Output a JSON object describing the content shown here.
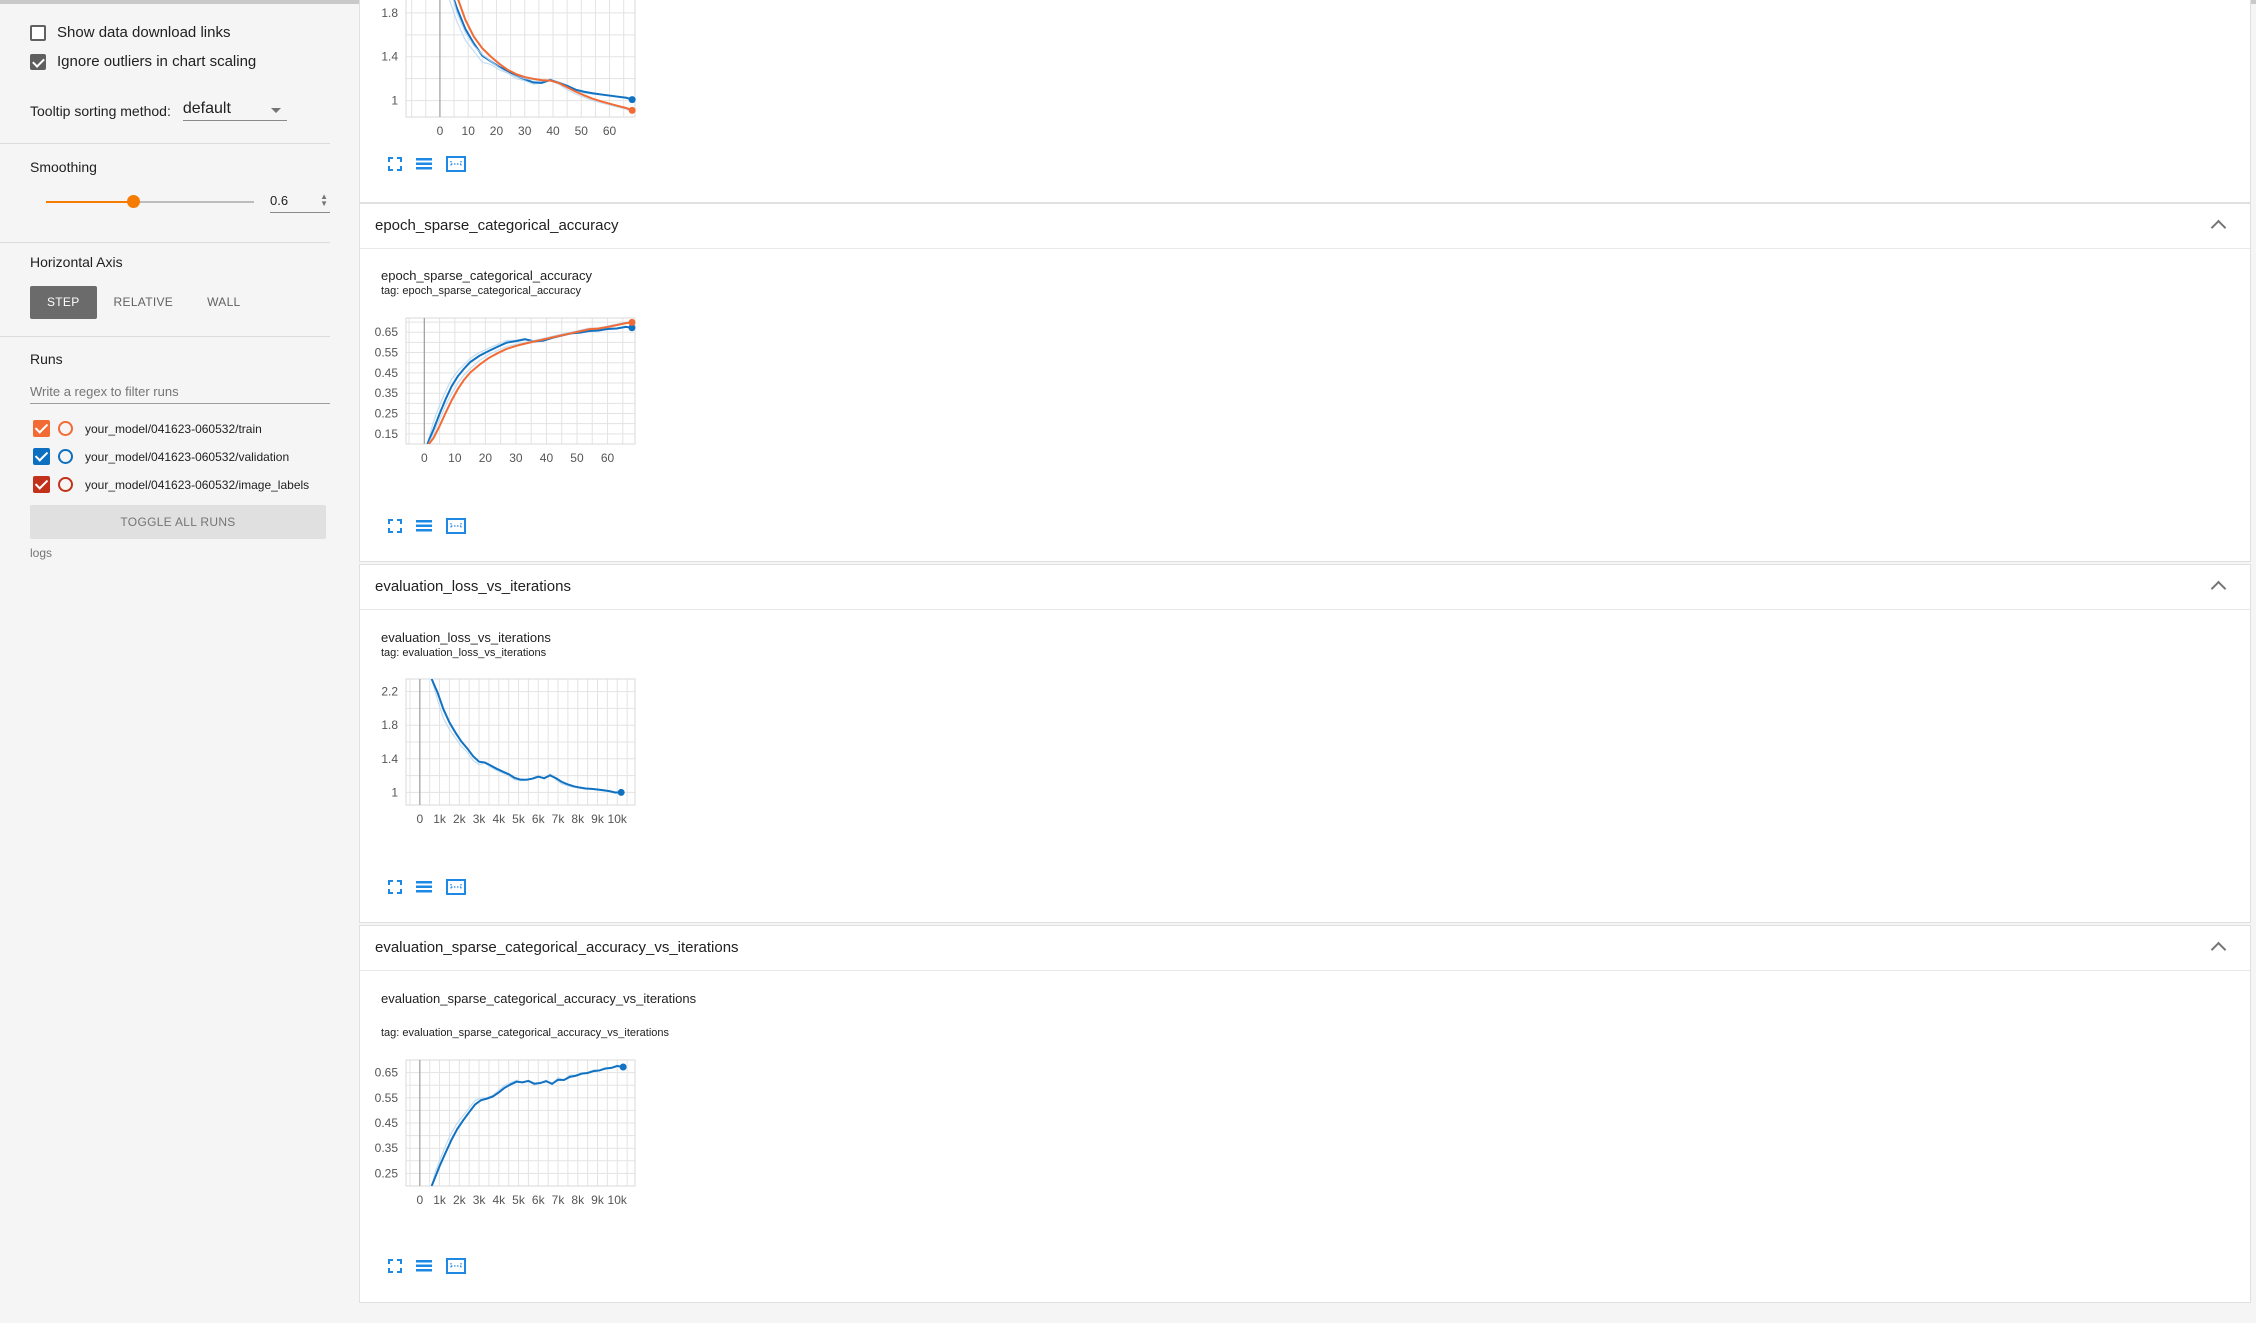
{
  "sidebar": {
    "show_download_label": "Show data download links",
    "ignore_outliers_label": "Ignore outliers in chart scaling",
    "tooltip_label": "Tooltip sorting method:",
    "tooltip_value": "default",
    "smoothing_label": "Smoothing",
    "smoothing_value": "0.6",
    "smoothing_fraction": 0.6,
    "horizontal_axis_label": "Horizontal Axis",
    "axis_options": [
      "STEP",
      "RELATIVE",
      "WALL"
    ],
    "runs_label": "Runs",
    "runs_filter_placeholder": "Write a regex to filter runs",
    "runs": [
      {
        "name": "your_model/041623-060532/train",
        "color": "#f26b35"
      },
      {
        "name": "your_model/041623-060532/validation",
        "color": "#0c6fbf"
      },
      {
        "name": "your_model/041623-060532/image_labels",
        "color": "#c2311a"
      }
    ],
    "toggle_all_label": "TOGGLE ALL RUNS",
    "logs_label": "logs"
  },
  "colors": {
    "train": "#f26b35",
    "validation": "#1172c2",
    "raw": "#b6d6f0",
    "accent": "#f57c00"
  },
  "icons": [
    "fullscreen-icon",
    "data-table-icon",
    "fit-domain-icon"
  ],
  "cards": [
    {
      "title": "",
      "chart_name": "",
      "chart_tag": ""
    },
    {
      "title": "epoch_sparse_categorical_accuracy",
      "chart_name": "epoch_sparse_categorical_accuracy",
      "chart_tag": "tag: epoch_sparse_categorical_accuracy"
    },
    {
      "title": "evaluation_loss_vs_iterations",
      "chart_name": "evaluation_loss_vs_iterations",
      "chart_tag": "tag: evaluation_loss_vs_iterations"
    },
    {
      "title": "evaluation_sparse_categorical_accuracy_vs_iterations",
      "chart_name": "evaluation_sparse_categorical_accuracy_vs_iterations",
      "chart_tag": "tag: evaluation_sparse_categorical_accuracy_vs_iterations"
    }
  ],
  "chart_data": [
    {
      "type": "line",
      "title": "",
      "xlim": [
        -12,
        69
      ],
      "ylim": [
        0.85,
        2.0
      ],
      "xticks": [
        0,
        10,
        20,
        30,
        40,
        50,
        60
      ],
      "xtick_labels": [
        "0",
        "10",
        "20",
        "30",
        "40",
        "50",
        "60"
      ],
      "yticks": [
        1,
        1.4,
        1.8
      ],
      "ytick_labels": [
        "1",
        "1.4",
        "1.8"
      ],
      "grid": true,
      "series": [
        {
          "run": "validation",
          "x": [
            0,
            3,
            6,
            9,
            12,
            15,
            18,
            21,
            24,
            27,
            30,
            33,
            36,
            39,
            42,
            45,
            48,
            51,
            54,
            57,
            60,
            63,
            66,
            68
          ],
          "y": [
            2.3,
            1.95,
            1.72,
            1.55,
            1.45,
            1.35,
            1.33,
            1.28,
            1.25,
            1.2,
            1.18,
            1.15,
            1.16,
            1.2,
            1.15,
            1.12,
            1.08,
            1.07,
            1.06,
            1.05,
            1.04,
            1.03,
            1.02,
            1.0
          ]
        },
        {
          "run": "train",
          "x": [
            0,
            3,
            6,
            9,
            12,
            15,
            18,
            21,
            24,
            27,
            30,
            33,
            36,
            39,
            42,
            45,
            48,
            51,
            54,
            57,
            60,
            63,
            66,
            68
          ],
          "y": [
            2.5,
            2.1,
            1.8,
            1.62,
            1.5,
            1.42,
            1.36,
            1.3,
            1.25,
            1.22,
            1.2,
            1.19,
            1.18,
            1.18,
            1.15,
            1.1,
            1.06,
            1.03,
            1.0,
            0.98,
            0.96,
            0.94,
            0.92,
            0.9
          ]
        }
      ]
    },
    {
      "type": "line",
      "title": "epoch_sparse_categorical_accuracy",
      "xlim": [
        -6,
        69
      ],
      "ylim": [
        0.1,
        0.72
      ],
      "xticks": [
        0,
        10,
        20,
        30,
        40,
        50,
        60
      ],
      "xtick_labels": [
        "0",
        "10",
        "20",
        "30",
        "40",
        "50",
        "60"
      ],
      "yticks": [
        0.15,
        0.25,
        0.35,
        0.45,
        0.55,
        0.65
      ],
      "ytick_labels": [
        "0.15",
        "0.25",
        "0.35",
        "0.45",
        "0.55",
        "0.65"
      ],
      "grid": true,
      "series": [
        {
          "run": "validation",
          "x": [
            1,
            3,
            5,
            7,
            9,
            11,
            13,
            15,
            18,
            21,
            24,
            27,
            30,
            33,
            36,
            39,
            42,
            45,
            48,
            51,
            54,
            57,
            60,
            63,
            66,
            68
          ],
          "y": [
            0.1,
            0.21,
            0.29,
            0.36,
            0.42,
            0.46,
            0.49,
            0.52,
            0.55,
            0.57,
            0.59,
            0.61,
            0.61,
            0.62,
            0.6,
            0.61,
            0.63,
            0.64,
            0.65,
            0.65,
            0.66,
            0.66,
            0.67,
            0.67,
            0.68,
            0.67
          ]
        },
        {
          "run": "train",
          "x": [
            1,
            3,
            5,
            7,
            9,
            11,
            13,
            15,
            18,
            21,
            24,
            27,
            30,
            33,
            36,
            39,
            42,
            45,
            48,
            51,
            54,
            57,
            60,
            63,
            66,
            68
          ],
          "y": [
            0.09,
            0.15,
            0.22,
            0.29,
            0.35,
            0.4,
            0.44,
            0.47,
            0.51,
            0.54,
            0.56,
            0.58,
            0.59,
            0.6,
            0.61,
            0.62,
            0.63,
            0.64,
            0.65,
            0.66,
            0.67,
            0.67,
            0.68,
            0.69,
            0.7,
            0.7
          ]
        }
      ]
    },
    {
      "type": "line",
      "title": "evaluation_loss_vs_iterations",
      "xlim": [
        -700,
        10900
      ],
      "ylim": [
        0.85,
        2.35
      ],
      "xticks": [
        0,
        1000,
        2000,
        3000,
        4000,
        5000,
        6000,
        7000,
        8000,
        9000,
        10000
      ],
      "xtick_labels": [
        "0",
        "1k",
        "2k",
        "3k",
        "4k",
        "5k",
        "6k",
        "7k",
        "8k",
        "9k",
        "10k"
      ],
      "yticks": [
        1,
        1.4,
        1.8,
        2.2
      ],
      "ytick_labels": [
        "1",
        "1.4",
        "1.8",
        "2.2"
      ],
      "grid": true,
      "series": [
        {
          "run": "validation",
          "x": [
            600,
            900,
            1200,
            1500,
            1800,
            2100,
            2400,
            2700,
            3000,
            3300,
            3600,
            3900,
            4200,
            4500,
            4800,
            5100,
            5400,
            5700,
            6000,
            6300,
            6600,
            6900,
            7200,
            7500,
            7800,
            8100,
            8400,
            8700,
            9000,
            9300,
            9600,
            9900,
            10200
          ],
          "y": [
            2.35,
            2.1,
            1.88,
            1.75,
            1.65,
            1.55,
            1.48,
            1.38,
            1.33,
            1.35,
            1.3,
            1.26,
            1.23,
            1.2,
            1.15,
            1.14,
            1.15,
            1.17,
            1.2,
            1.16,
            1.22,
            1.15,
            1.1,
            1.08,
            1.06,
            1.05,
            1.04,
            1.04,
            1.03,
            1.02,
            1.01,
            0.99,
            1.0
          ]
        }
      ]
    },
    {
      "type": "line",
      "title": "evaluation_sparse_categorical_accuracy_vs_iterations",
      "xlim": [
        -700,
        10900
      ],
      "ylim": [
        0.2,
        0.7
      ],
      "xticks": [
        0,
        1000,
        2000,
        3000,
        4000,
        5000,
        6000,
        7000,
        8000,
        9000,
        10000
      ],
      "xtick_labels": [
        "0",
        "1k",
        "2k",
        "3k",
        "4k",
        "5k",
        "6k",
        "7k",
        "8k",
        "9k",
        "10k"
      ],
      "yticks": [
        0.25,
        0.35,
        0.45,
        0.55,
        0.65
      ],
      "ytick_labels": [
        "0.25",
        "0.35",
        "0.45",
        "0.55",
        "0.65"
      ],
      "grid": true,
      "series": [
        {
          "run": "validation",
          "x": [
            600,
            800,
            1000,
            1300,
            1600,
            1900,
            2200,
            2500,
            2800,
            3100,
            3400,
            3700,
            4000,
            4300,
            4600,
            4900,
            5200,
            5500,
            5800,
            6100,
            6400,
            6700,
            7000,
            7300,
            7600,
            7900,
            8200,
            8500,
            8800,
            9100,
            9400,
            9700,
            10000,
            10300
          ],
          "y": [
            0.2,
            0.26,
            0.3,
            0.36,
            0.41,
            0.45,
            0.48,
            0.51,
            0.54,
            0.55,
            0.55,
            0.56,
            0.58,
            0.6,
            0.61,
            0.62,
            0.61,
            0.62,
            0.6,
            0.61,
            0.62,
            0.6,
            0.63,
            0.62,
            0.64,
            0.64,
            0.65,
            0.65,
            0.66,
            0.66,
            0.67,
            0.67,
            0.68,
            0.67
          ]
        }
      ]
    }
  ]
}
